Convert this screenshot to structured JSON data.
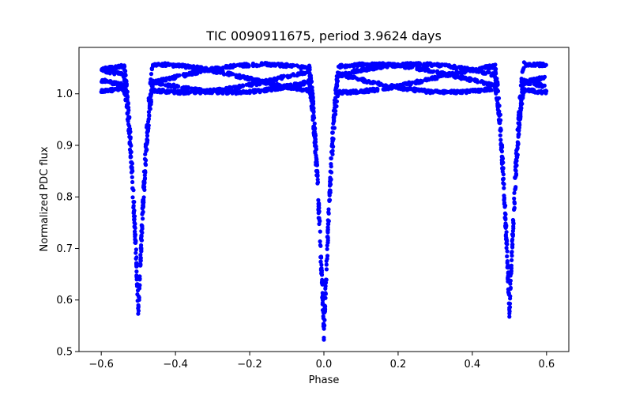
{
  "chart_data": {
    "type": "scatter",
    "title": "TIC 0090911675, period 3.9624 days",
    "xlabel": "Phase",
    "ylabel": "Normalized PDC flux",
    "xlim": [
      -0.66,
      0.66
    ],
    "ylim": [
      0.5,
      1.09
    ],
    "xticks": [
      -0.6,
      -0.4,
      -0.2,
      0.0,
      0.2,
      0.4,
      0.6
    ],
    "xtick_labels": [
      "−0.6",
      "−0.4",
      "−0.2",
      "0.0",
      "0.2",
      "0.4",
      "0.6"
    ],
    "yticks": [
      0.5,
      0.6,
      0.7,
      0.8,
      0.9,
      1.0
    ],
    "ytick_labels": [
      "0.5",
      "0.6",
      "0.7",
      "0.8",
      "0.9",
      "1.0"
    ],
    "grid": false,
    "legend": false,
    "color": "#0000ff",
    "phase_range": [
      -0.6,
      0.6
    ],
    "eclipses": [
      {
        "phase": -0.5,
        "min_flux": 0.56,
        "half_width": 0.04
      },
      {
        "phase": 0.0,
        "min_flux": 0.52,
        "half_width": 0.04
      },
      {
        "phase": 0.5,
        "min_flux": 0.56,
        "half_width": 0.04
      }
    ],
    "out_of_eclipse_flux": [
      1.0,
      1.06
    ]
  }
}
